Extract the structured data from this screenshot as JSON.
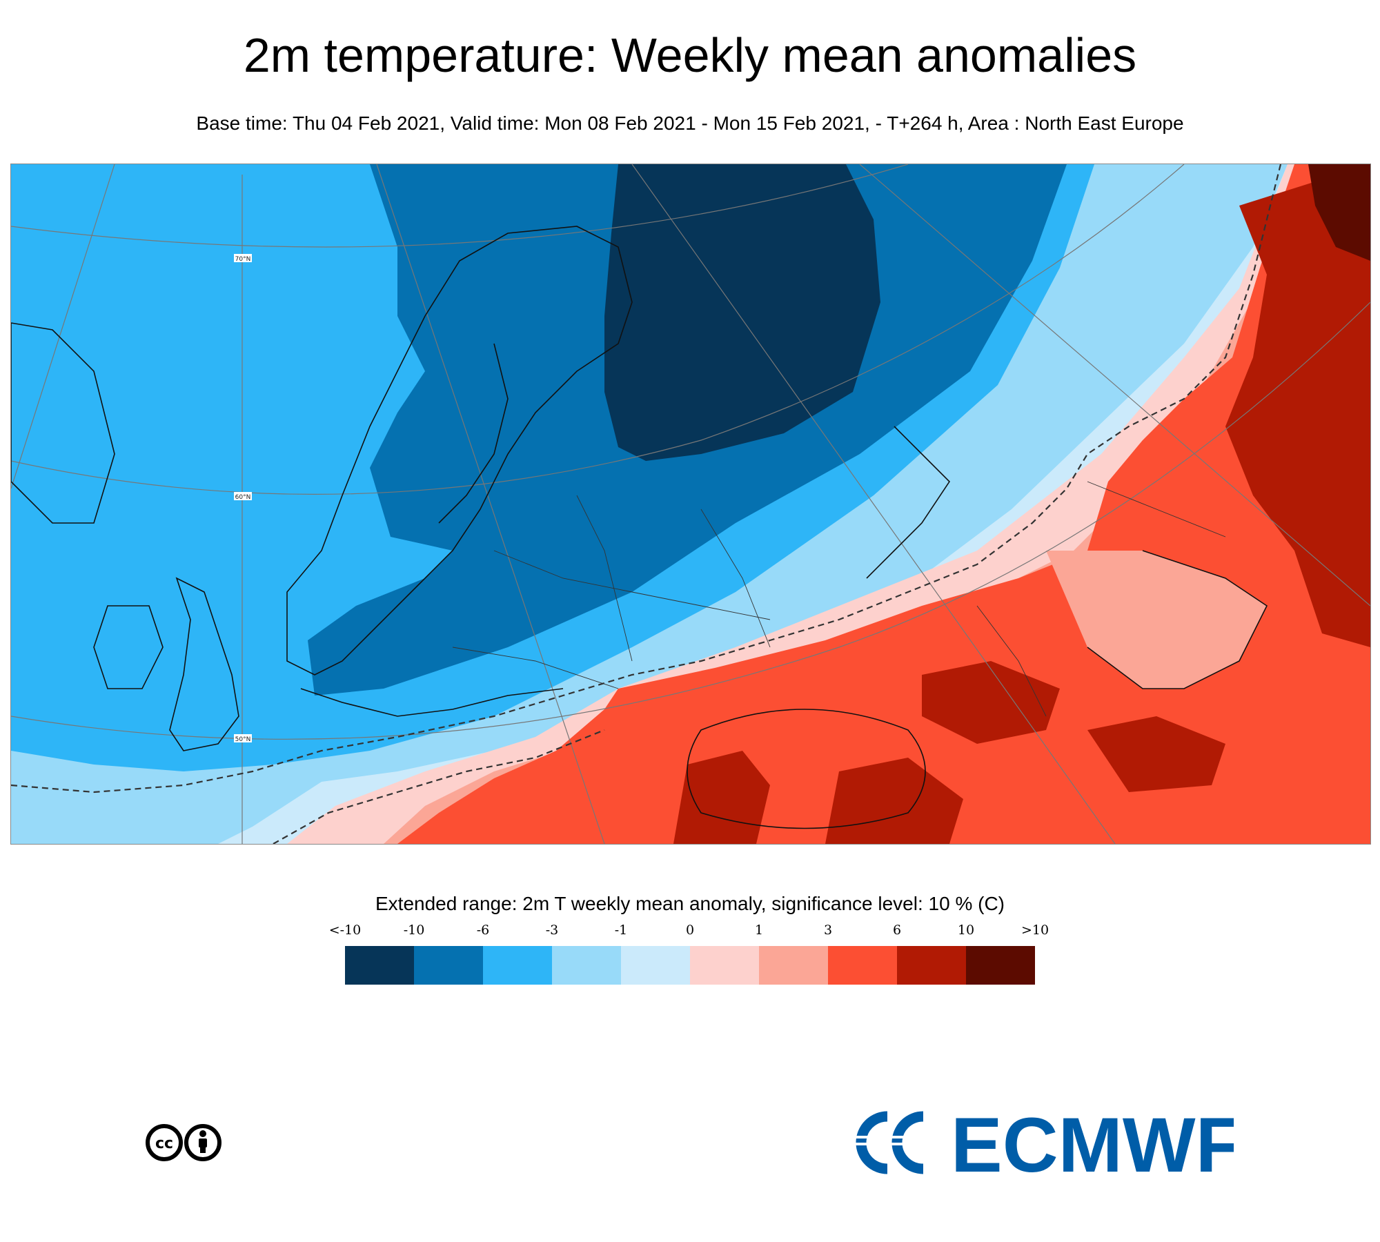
{
  "header": {
    "title": "2m temperature: Weekly mean anomalies",
    "subtitle": "Base time: Thu 04 Feb 2021, Valid time: Mon 08 Feb 2021 - Mon 15 Feb 2021, - T+264 h, Area : North East Europe"
  },
  "map": {
    "graticule_labels": [
      "70°N",
      "60°N",
      "50°N"
    ]
  },
  "legend": {
    "title": "Extended range: 2m T weekly mean anomaly, significance level: 10 % (C)",
    "tick_labels": [
      "<-10",
      "-10",
      "-6",
      "-3",
      "-1",
      "0",
      "1",
      "3",
      "6",
      "10",
      ">10"
    ],
    "colors": [
      "#063558",
      "#0571b0",
      "#2eb5f7",
      "#98daf9",
      "#cbeafb",
      "#fdd1cd",
      "#fba696",
      "#fc4f33",
      "#b11a04",
      "#5c0b00"
    ]
  },
  "footer": {
    "license_icons": [
      "cc-icon",
      "by-attribution-icon"
    ],
    "logo_text": "ECMWF",
    "logo_color": "#005da8"
  }
}
